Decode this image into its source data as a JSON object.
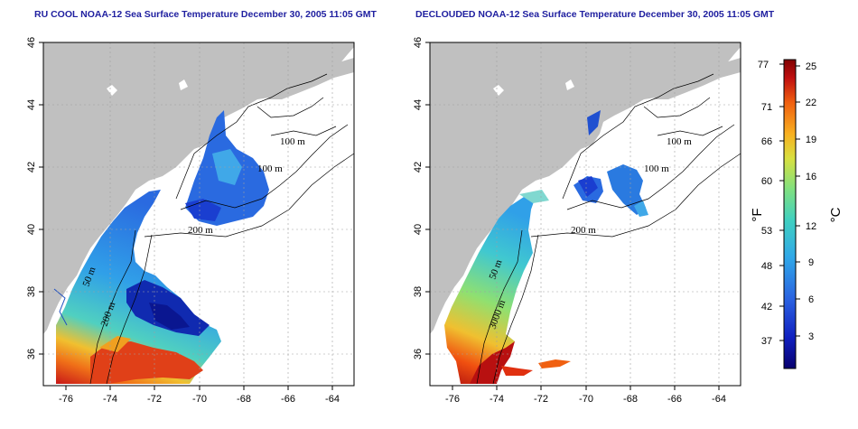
{
  "panels": [
    {
      "title": "RU COOL NOAA-12 Sea Surface Temperature December 30, 2005 11:05 GMT"
    },
    {
      "title": "DECLOUDED NOAA-12 Sea Surface Temperature December 30, 2005 11:05 GMT"
    }
  ],
  "map": {
    "lat_ticks": [
      "46",
      "44",
      "42",
      "40",
      "38",
      "36"
    ],
    "lon_ticks": [
      "-76",
      "-74",
      "-72",
      "-70",
      "-68",
      "-66",
      "-64"
    ],
    "lat_range": [
      35,
      46
    ],
    "lon_range": [
      -77.2,
      -63.0
    ],
    "land_color": "#c0c0c0",
    "contour_labels_left": [
      "100 m",
      "100 m",
      "200 m",
      "50 m",
      "200 m"
    ],
    "contour_labels_right": [
      "100 m",
      "100 m",
      "200 m",
      "50 m",
      "3000 m"
    ]
  },
  "colorbar": {
    "fahrenheit_ticks": [
      "77",
      "71",
      "66",
      "60",
      "53",
      "48",
      "42",
      "37"
    ],
    "celsius_ticks": [
      "25",
      "22",
      "19",
      "16",
      "12",
      "9",
      "6",
      "3"
    ],
    "fahrenheit_label": "°F",
    "celsius_label": "°C",
    "colors": [
      "#08006e",
      "#1020c0",
      "#2a60e0",
      "#30a8e8",
      "#40d0c0",
      "#80e080",
      "#d8e040",
      "#f8b020",
      "#f06010",
      "#c01010",
      "#800000"
    ]
  }
}
